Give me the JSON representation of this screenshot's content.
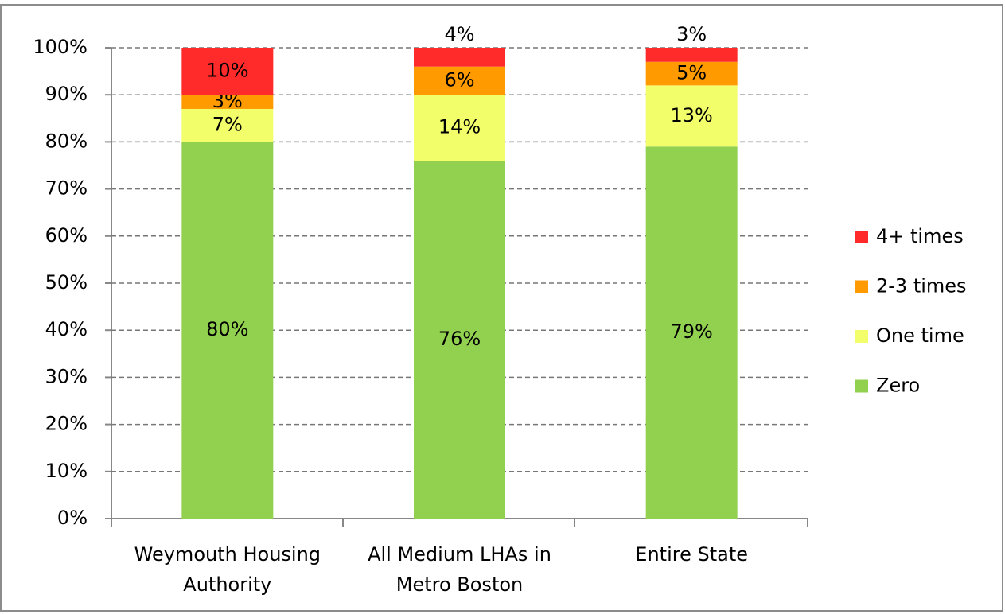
{
  "chart_data": {
    "type": "stacked_bar",
    "categories": [
      "Weymouth Housing Authority",
      "All Medium LHAs in Metro Boston",
      "Entire State"
    ],
    "series": [
      {
        "name": "Zero",
        "color": "#92d050",
        "values": [
          80,
          76,
          79
        ],
        "value_labels": [
          "80%",
          "76%",
          "79%"
        ]
      },
      {
        "name": "One time",
        "color": "#f2ff6a",
        "values": [
          7,
          14,
          13
        ],
        "value_labels": [
          "7%",
          "14%",
          "13%"
        ]
      },
      {
        "name": "2-3 times",
        "color": "#ff9a00",
        "values": [
          3,
          6,
          5
        ],
        "value_labels": [
          "3%",
          "6%",
          "5%"
        ]
      },
      {
        "name": "4+ times",
        "color": "#ff2a2a",
        "values": [
          10,
          4,
          3
        ],
        "value_labels": [
          "10%",
          "4%",
          "3%"
        ]
      }
    ],
    "ylim": [
      0,
      100
    ],
    "yticks": [
      {
        "value": 0,
        "label": "0%"
      },
      {
        "value": 10,
        "label": "10%"
      },
      {
        "value": 20,
        "label": "20%"
      },
      {
        "value": 30,
        "label": "30%"
      },
      {
        "value": 40,
        "label": "40%"
      },
      {
        "value": 50,
        "label": "50%"
      },
      {
        "value": 60,
        "label": "60%"
      },
      {
        "value": 70,
        "label": "70%"
      },
      {
        "value": 80,
        "label": "80%"
      },
      {
        "value": 90,
        "label": "90%"
      },
      {
        "value": 100,
        "label": "100%"
      }
    ],
    "grid": true,
    "legend": "right"
  }
}
